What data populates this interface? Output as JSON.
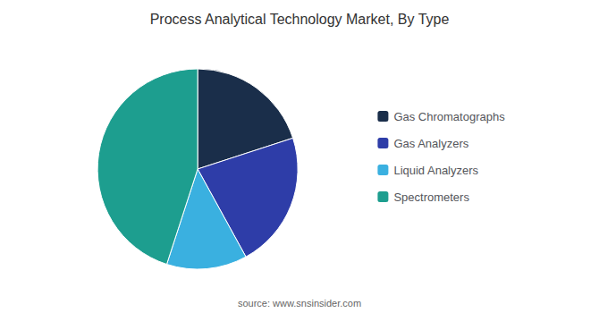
{
  "chart_data": {
    "type": "pie",
    "title": "Process Analytical Technology Market, By Type",
    "categories": [
      "Gas Chromatographs",
      "Gas Analyzers",
      "Liquid Analyzers",
      "Spectrometers"
    ],
    "values": [
      20,
      22,
      13,
      45
    ],
    "colors": [
      "#1a2e4a",
      "#2e3da8",
      "#3ab0e0",
      "#1d9e8f"
    ],
    "legend": "right",
    "annotations": [
      "source: www.snsinsider.com"
    ]
  }
}
